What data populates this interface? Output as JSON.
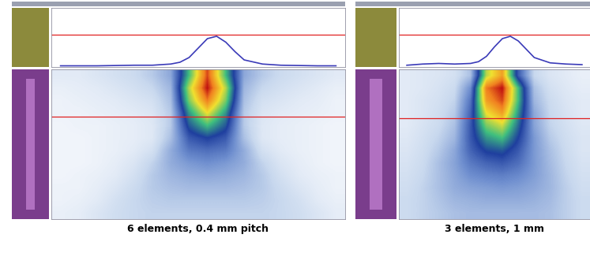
{
  "chart_data": [
    {
      "type": "line",
      "x": [
        0,
        2,
        4,
        5,
        6,
        6.5,
        7,
        7.5,
        8,
        8.5,
        9,
        9.5,
        10,
        11,
        12,
        14,
        15
      ],
      "values": [
        2,
        2,
        3,
        3,
        5,
        8,
        16,
        32,
        48,
        52,
        42,
        26,
        12,
        5,
        3,
        2,
        2
      ],
      "color": "#3a3ab8",
      "xlim": [
        -0.5,
        15.5
      ],
      "ylim": [
        0,
        100
      ],
      "reference_line": 55,
      "tick_labels": false
    },
    {
      "type": "heatmap",
      "cells": [
        [
          8,
          8,
          10,
          12,
          14,
          18,
          25,
          60,
          95,
          60,
          25,
          18,
          14,
          12,
          10,
          8
        ],
        [
          6,
          7,
          8,
          10,
          12,
          15,
          22,
          70,
          100,
          70,
          22,
          15,
          12,
          10,
          8,
          6
        ],
        [
          5,
          6,
          7,
          8,
          10,
          12,
          20,
          65,
          90,
          65,
          20,
          12,
          10,
          8,
          7,
          5
        ],
        [
          5,
          5,
          6,
          7,
          8,
          10,
          18,
          55,
          75,
          55,
          18,
          10,
          8,
          7,
          6,
          5
        ],
        [
          4,
          5,
          5,
          6,
          7,
          9,
          18,
          48,
          60,
          48,
          18,
          9,
          7,
          6,
          5,
          4
        ],
        [
          4,
          4,
          5,
          6,
          7,
          9,
          20,
          40,
          45,
          40,
          20,
          9,
          7,
          6,
          5,
          4
        ],
        [
          4,
          4,
          5,
          6,
          8,
          12,
          24,
          34,
          36,
          34,
          24,
          12,
          8,
          6,
          5,
          4
        ],
        [
          4,
          4,
          5,
          7,
          10,
          16,
          24,
          28,
          30,
          28,
          24,
          16,
          10,
          7,
          5,
          4
        ],
        [
          4,
          5,
          6,
          8,
          12,
          18,
          22,
          24,
          25,
          24,
          22,
          18,
          12,
          8,
          6,
          5
        ],
        [
          5,
          5,
          7,
          10,
          14,
          18,
          20,
          21,
          21,
          21,
          20,
          18,
          14,
          10,
          7,
          5
        ],
        [
          5,
          6,
          8,
          12,
          15,
          17,
          18,
          18,
          18,
          18,
          18,
          17,
          15,
          12,
          8,
          6
        ],
        [
          6,
          7,
          10,
          13,
          15,
          16,
          16,
          16,
          16,
          16,
          16,
          16,
          15,
          13,
          10,
          7
        ]
      ],
      "xlim": [
        -0.5,
        15.5
      ],
      "ylim": [
        11.5,
        -0.5
      ],
      "clim": [
        0,
        100
      ],
      "reference_line": 3.3,
      "tick_labels": false,
      "x_label": "6 elements, 0.4 mm pitch"
    },
    {
      "type": "line",
      "x": [
        0,
        1,
        2,
        3,
        4,
        4.5,
        5,
        5.5,
        6,
        6.5,
        7,
        7.5,
        8,
        9,
        10,
        11
      ],
      "values": [
        3,
        5,
        6,
        5,
        6,
        9,
        18,
        34,
        48,
        52,
        44,
        30,
        16,
        7,
        5,
        4
      ],
      "color": "#3a3ab8",
      "xlim": [
        -0.5,
        11.5
      ],
      "ylim": [
        0,
        100
      ],
      "reference_line": 55,
      "tick_labels": false
    },
    {
      "type": "heatmap",
      "cells": [
        [
          8,
          9,
          10,
          12,
          20,
          70,
          85,
          40,
          15,
          10,
          8,
          6
        ],
        [
          8,
          9,
          11,
          14,
          30,
          90,
          100,
          60,
          20,
          12,
          9,
          7
        ],
        [
          8,
          10,
          12,
          16,
          35,
          85,
          95,
          60,
          22,
          14,
          10,
          8
        ],
        [
          8,
          10,
          13,
          18,
          38,
          75,
          85,
          55,
          25,
          15,
          11,
          8
        ],
        [
          8,
          11,
          14,
          20,
          40,
          65,
          72,
          50,
          26,
          16,
          12,
          9
        ],
        [
          9,
          12,
          16,
          22,
          40,
          55,
          60,
          45,
          28,
          18,
          13,
          10
        ],
        [
          10,
          13,
          18,
          25,
          38,
          46,
          48,
          40,
          28,
          20,
          14,
          10
        ],
        [
          11,
          14,
          20,
          26,
          34,
          38,
          40,
          36,
          28,
          21,
          15,
          11
        ],
        [
          12,
          15,
          20,
          25,
          30,
          32,
          33,
          31,
          27,
          22,
          16,
          12
        ],
        [
          13,
          16,
          20,
          24,
          26,
          27,
          28,
          27,
          25,
          22,
          17,
          13
        ],
        [
          14,
          16,
          19,
          22,
          23,
          24,
          24,
          24,
          23,
          21,
          17,
          14
        ],
        [
          14,
          16,
          18,
          20,
          21,
          21,
          21,
          21,
          21,
          20,
          17,
          14
        ]
      ],
      "xlim": [
        -0.5,
        11.5
      ],
      "ylim": [
        11.5,
        -0.5
      ],
      "clim": [
        0,
        100
      ],
      "reference_line": 3.4,
      "tick_labels": false,
      "x_label": "3 elements, 1 mm"
    }
  ]
}
